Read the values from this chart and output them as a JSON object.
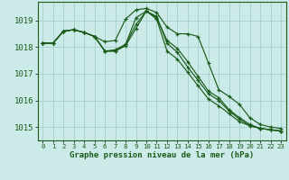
{
  "title": "Graphe pression niveau de la mer (hPa)",
  "bg_color": "#cceae7",
  "grid_color": "#aad4d0",
  "line_color": "#1a5c1a",
  "xlim": [
    -0.5,
    23.5
  ],
  "ylim": [
    1014.5,
    1019.7
  ],
  "yticks": [
    1015,
    1016,
    1017,
    1018,
    1019
  ],
  "xticks": [
    0,
    1,
    2,
    3,
    4,
    5,
    6,
    7,
    8,
    9,
    10,
    11,
    12,
    13,
    14,
    15,
    16,
    17,
    18,
    19,
    20,
    21,
    22,
    23
  ],
  "series": [
    [
      1018.15,
      1018.15,
      1018.6,
      1018.65,
      1018.55,
      1018.4,
      1018.2,
      1018.25,
      1019.05,
      1019.4,
      1019.45,
      1019.3,
      1018.75,
      1018.5,
      1018.5,
      1018.4,
      1017.4,
      1016.4,
      1016.15,
      1015.85,
      1015.35,
      1015.1,
      1015.0,
      1014.95
    ],
    [
      1018.15,
      1018.15,
      1018.6,
      1018.65,
      1018.55,
      1018.4,
      1017.85,
      1017.9,
      1018.1,
      1018.85,
      1019.35,
      1019.15,
      1018.15,
      1017.8,
      1017.25,
      1016.75,
      1016.25,
      1016.0,
      1015.6,
      1015.3,
      1015.05,
      1014.95,
      1014.9,
      1014.85
    ],
    [
      1018.15,
      1018.15,
      1018.6,
      1018.65,
      1018.55,
      1018.4,
      1017.85,
      1017.85,
      1018.1,
      1019.1,
      1019.35,
      1019.1,
      1018.25,
      1017.95,
      1017.45,
      1016.9,
      1016.35,
      1016.1,
      1015.65,
      1015.35,
      1015.1,
      1014.95,
      1014.9,
      1014.85
    ],
    [
      1018.15,
      1018.15,
      1018.6,
      1018.65,
      1018.55,
      1018.4,
      1017.85,
      1017.85,
      1018.05,
      1018.7,
      1019.35,
      1019.05,
      1017.85,
      1017.55,
      1017.05,
      1016.55,
      1016.05,
      1015.8,
      1015.5,
      1015.2,
      1015.05,
      1014.95,
      1014.9,
      1014.85
    ]
  ]
}
